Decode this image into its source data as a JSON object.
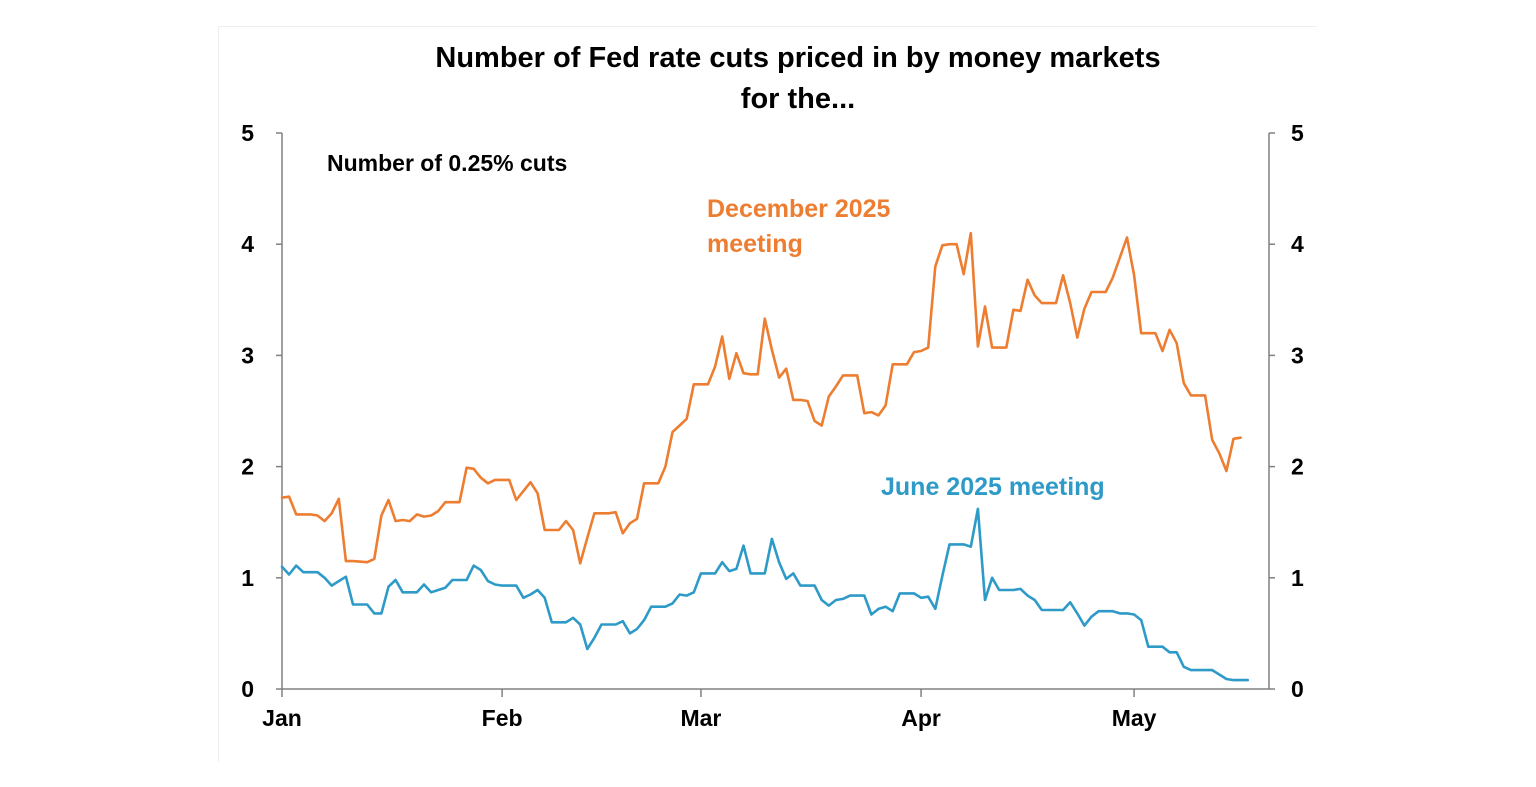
{
  "chart_data": {
    "type": "line",
    "title_lines": [
      "Number of Fed rate cuts priced in by money markets",
      "for the..."
    ],
    "ylabel": "Number of 0.25% cuts",
    "ylim": [
      0,
      5
    ],
    "yticks": [
      "0",
      "1",
      "2",
      "3",
      "4",
      "5"
    ],
    "x_range": [
      0,
      139
    ],
    "x_ticks": [
      {
        "label": "Jan",
        "x": 0
      },
      {
        "label": "Feb",
        "x": 31
      },
      {
        "label": "Mar",
        "x": 59
      },
      {
        "label": "Apr",
        "x": 90
      },
      {
        "label": "May",
        "x": 120
      }
    ],
    "grid": false,
    "series": [
      {
        "name": "December 2025 meeting",
        "label_lines": [
          "December 2025",
          "meeting"
        ],
        "color": "#ED7D31",
        "points": [
          [
            0,
            1.72
          ],
          [
            1,
            1.73
          ],
          [
            2,
            1.57
          ],
          [
            4,
            1.57
          ],
          [
            5,
            1.56
          ],
          [
            6,
            1.51
          ],
          [
            7,
            1.58
          ],
          [
            8,
            1.71
          ],
          [
            9,
            1.15
          ],
          [
            10,
            1.15
          ],
          [
            12,
            1.14
          ],
          [
            13,
            1.17
          ],
          [
            14,
            1.56
          ],
          [
            15,
            1.7
          ],
          [
            16,
            1.51
          ],
          [
            17,
            1.52
          ],
          [
            18,
            1.51
          ],
          [
            19,
            1.57
          ],
          [
            20,
            1.55
          ],
          [
            21,
            1.56
          ],
          [
            22,
            1.6
          ],
          [
            23,
            1.68
          ],
          [
            24,
            1.68
          ],
          [
            25,
            1.68
          ],
          [
            26,
            1.99
          ],
          [
            27,
            1.98
          ],
          [
            28,
            1.9
          ],
          [
            29,
            1.85
          ],
          [
            30,
            1.88
          ],
          [
            32,
            1.88
          ],
          [
            33,
            1.7
          ],
          [
            34,
            1.78
          ],
          [
            35,
            1.86
          ],
          [
            36,
            1.76
          ],
          [
            37,
            1.43
          ],
          [
            38,
            1.43
          ],
          [
            39,
            1.43
          ],
          [
            40,
            1.51
          ],
          [
            41,
            1.43
          ],
          [
            42,
            1.13
          ],
          [
            43,
            1.36
          ],
          [
            44,
            1.58
          ],
          [
            45,
            1.58
          ],
          [
            46,
            1.58
          ],
          [
            47,
            1.59
          ],
          [
            48,
            1.4
          ],
          [
            49,
            1.49
          ],
          [
            50,
            1.53
          ],
          [
            51,
            1.85
          ],
          [
            52,
            1.85
          ],
          [
            53,
            1.85
          ],
          [
            54,
            2.0
          ],
          [
            55,
            2.31
          ],
          [
            56,
            2.37
          ],
          [
            57,
            2.43
          ],
          [
            58,
            2.74
          ],
          [
            59,
            2.74
          ],
          [
            60,
            2.74
          ],
          [
            61,
            2.9
          ],
          [
            62,
            3.17
          ],
          [
            63,
            2.79
          ],
          [
            64,
            3.02
          ],
          [
            65,
            2.84
          ],
          [
            66,
            2.83
          ],
          [
            67,
            2.83
          ],
          [
            68,
            3.33
          ],
          [
            69,
            3.05
          ],
          [
            70,
            2.8
          ],
          [
            71,
            2.88
          ],
          [
            72,
            2.6
          ],
          [
            73,
            2.6
          ],
          [
            74,
            2.59
          ],
          [
            75,
            2.41
          ],
          [
            76,
            2.37
          ],
          [
            77,
            2.63
          ],
          [
            78,
            2.72
          ],
          [
            79,
            2.82
          ],
          [
            80,
            2.82
          ],
          [
            81,
            2.82
          ],
          [
            82,
            2.48
          ],
          [
            83,
            2.49
          ],
          [
            84,
            2.46
          ],
          [
            85,
            2.55
          ],
          [
            86,
            2.92
          ],
          [
            87,
            2.92
          ],
          [
            88,
            2.92
          ],
          [
            89,
            3.03
          ],
          [
            90,
            3.04
          ],
          [
            91,
            3.07
          ],
          [
            92,
            3.8
          ],
          [
            93,
            3.99
          ],
          [
            94,
            4.0
          ],
          [
            95,
            4.0
          ],
          [
            96,
            3.73
          ],
          [
            97,
            4.1
          ],
          [
            98,
            3.08
          ],
          [
            99,
            3.44
          ],
          [
            100,
            3.07
          ],
          [
            101,
            3.07
          ],
          [
            102,
            3.07
          ],
          [
            103,
            3.41
          ],
          [
            104,
            3.4
          ],
          [
            105,
            3.68
          ],
          [
            106,
            3.54
          ],
          [
            107,
            3.47
          ],
          [
            108,
            3.47
          ],
          [
            109,
            3.47
          ],
          [
            110,
            3.72
          ],
          [
            111,
            3.47
          ],
          [
            112,
            3.16
          ],
          [
            113,
            3.42
          ],
          [
            114,
            3.57
          ],
          [
            115,
            3.57
          ],
          [
            116,
            3.57
          ],
          [
            117,
            3.7
          ],
          [
            118,
            3.88
          ],
          [
            119,
            4.06
          ],
          [
            120,
            3.72
          ],
          [
            121,
            3.2
          ],
          [
            122,
            3.2
          ],
          [
            123,
            3.2
          ],
          [
            124,
            3.04
          ],
          [
            125,
            3.23
          ],
          [
            126,
            3.11
          ],
          [
            127,
            2.75
          ],
          [
            128,
            2.64
          ],
          [
            129,
            2.64
          ],
          [
            130,
            2.64
          ],
          [
            131,
            2.24
          ],
          [
            132,
            2.12
          ],
          [
            133,
            1.96
          ],
          [
            134,
            2.25
          ],
          [
            135,
            2.26
          ]
        ]
      },
      {
        "name": "June 2025 meeting",
        "label_lines": [
          "June 2025 meeting"
        ],
        "color": "#2E9AC7",
        "points": [
          [
            0,
            1.1
          ],
          [
            1,
            1.03
          ],
          [
            2,
            1.11
          ],
          [
            3,
            1.05
          ],
          [
            5,
            1.05
          ],
          [
            6,
            1.0
          ],
          [
            7,
            0.93
          ],
          [
            8,
            0.97
          ],
          [
            9,
            1.01
          ],
          [
            10,
            0.76
          ],
          [
            12,
            0.76
          ],
          [
            13,
            0.68
          ],
          [
            14,
            0.68
          ],
          [
            15,
            0.92
          ],
          [
            16,
            0.98
          ],
          [
            17,
            0.87
          ],
          [
            18,
            0.87
          ],
          [
            19,
            0.87
          ],
          [
            20,
            0.94
          ],
          [
            21,
            0.87
          ],
          [
            22,
            0.89
          ],
          [
            23,
            0.91
          ],
          [
            24,
            0.98
          ],
          [
            25,
            0.98
          ],
          [
            26,
            0.98
          ],
          [
            27,
            1.11
          ],
          [
            28,
            1.07
          ],
          [
            29,
            0.97
          ],
          [
            30,
            0.94
          ],
          [
            31,
            0.93
          ],
          [
            32,
            0.93
          ],
          [
            33,
            0.93
          ],
          [
            34,
            0.82
          ],
          [
            35,
            0.85
          ],
          [
            36,
            0.89
          ],
          [
            37,
            0.82
          ],
          [
            38,
            0.6
          ],
          [
            39,
            0.6
          ],
          [
            40,
            0.6
          ],
          [
            41,
            0.64
          ],
          [
            42,
            0.58
          ],
          [
            43,
            0.36
          ],
          [
            44,
            0.46
          ],
          [
            45,
            0.58
          ],
          [
            46,
            0.58
          ],
          [
            47,
            0.58
          ],
          [
            48,
            0.61
          ],
          [
            49,
            0.5
          ],
          [
            50,
            0.54
          ],
          [
            51,
            0.62
          ],
          [
            52,
            0.74
          ],
          [
            53,
            0.74
          ],
          [
            54,
            0.74
          ],
          [
            55,
            0.77
          ],
          [
            56,
            0.85
          ],
          [
            57,
            0.84
          ],
          [
            58,
            0.87
          ],
          [
            59,
            1.04
          ],
          [
            60,
            1.04
          ],
          [
            61,
            1.04
          ],
          [
            62,
            1.14
          ],
          [
            63,
            1.06
          ],
          [
            64,
            1.08
          ],
          [
            65,
            1.29
          ],
          [
            66,
            1.04
          ],
          [
            67,
            1.04
          ],
          [
            68,
            1.04
          ],
          [
            69,
            1.35
          ],
          [
            70,
            1.14
          ],
          [
            71,
            0.99
          ],
          [
            72,
            1.04
          ],
          [
            73,
            0.93
          ],
          [
            74,
            0.93
          ],
          [
            75,
            0.93
          ],
          [
            76,
            0.8
          ],
          [
            77,
            0.75
          ],
          [
            78,
            0.8
          ],
          [
            79,
            0.81
          ],
          [
            80,
            0.84
          ],
          [
            81,
            0.84
          ],
          [
            82,
            0.84
          ],
          [
            83,
            0.67
          ],
          [
            84,
            0.72
          ],
          [
            85,
            0.74
          ],
          [
            86,
            0.7
          ],
          [
            87,
            0.86
          ],
          [
            88,
            0.86
          ],
          [
            89,
            0.86
          ],
          [
            90,
            0.82
          ],
          [
            91,
            0.83
          ],
          [
            92,
            0.72
          ],
          [
            93,
            1.02
          ],
          [
            94,
            1.3
          ],
          [
            95,
            1.3
          ],
          [
            96,
            1.3
          ],
          [
            97,
            1.28
          ],
          [
            98,
            1.62
          ],
          [
            99,
            0.8
          ],
          [
            100,
            1.0
          ],
          [
            101,
            0.89
          ],
          [
            102,
            0.89
          ],
          [
            103,
            0.89
          ],
          [
            104,
            0.9
          ],
          [
            105,
            0.84
          ],
          [
            106,
            0.8
          ],
          [
            107,
            0.71
          ],
          [
            108,
            0.71
          ],
          [
            109,
            0.71
          ],
          [
            110,
            0.71
          ],
          [
            111,
            0.78
          ],
          [
            112,
            0.68
          ],
          [
            113,
            0.57
          ],
          [
            114,
            0.65
          ],
          [
            115,
            0.7
          ],
          [
            116,
            0.7
          ],
          [
            117,
            0.7
          ],
          [
            118,
            0.68
          ],
          [
            119,
            0.68
          ],
          [
            120,
            0.67
          ],
          [
            121,
            0.62
          ],
          [
            122,
            0.38
          ],
          [
            123,
            0.38
          ],
          [
            124,
            0.38
          ],
          [
            125,
            0.33
          ],
          [
            126,
            0.33
          ],
          [
            127,
            0.2
          ],
          [
            128,
            0.17
          ],
          [
            129,
            0.17
          ],
          [
            130,
            0.17
          ],
          [
            131,
            0.17
          ],
          [
            132,
            0.13
          ],
          [
            133,
            0.09
          ],
          [
            134,
            0.08
          ],
          [
            135,
            0.08
          ],
          [
            136,
            0.08
          ]
        ]
      }
    ]
  }
}
